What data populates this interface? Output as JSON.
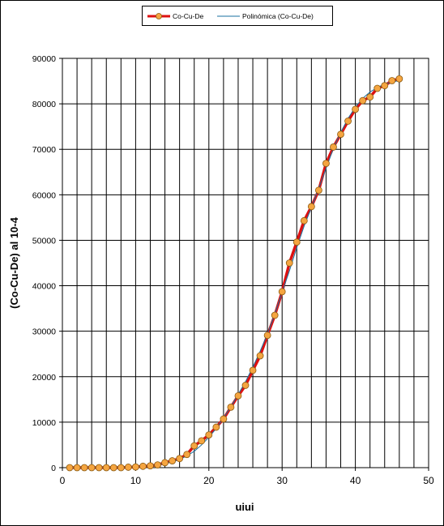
{
  "chart_data": {
    "type": "line",
    "xlabel": "uiui",
    "ylabel": "(Co-Cu-De) al 10-4",
    "xlim": [
      0,
      50
    ],
    "ylim": [
      0,
      90000
    ],
    "x_ticks": [
      0,
      10,
      20,
      30,
      40,
      50
    ],
    "y_ticks": [
      0,
      10000,
      20000,
      30000,
      40000,
      50000,
      60000,
      70000,
      80000,
      90000
    ],
    "x_grid_step": 2,
    "y_grid_step": 10000,
    "grid": true,
    "legend_position": "top-center",
    "series": [
      {
        "name": "Co-Cu-De",
        "line_color": "#dd1111",
        "marker_fill": "#f5a540",
        "marker_stroke": "#8a5a10",
        "x": [
          1,
          2,
          3,
          4,
          5,
          6,
          7,
          8,
          9,
          10,
          11,
          12,
          13,
          14,
          15,
          16,
          17,
          18,
          19,
          20,
          21,
          22,
          23,
          24,
          25,
          26,
          27,
          28,
          29,
          30,
          31,
          32,
          33,
          34,
          35,
          36,
          37,
          38,
          39,
          40,
          41,
          42,
          43,
          44,
          45,
          46
        ],
        "y": [
          0,
          0,
          0,
          0,
          0,
          0,
          0,
          0,
          100,
          150,
          300,
          400,
          600,
          1100,
          1500,
          2000,
          2900,
          4800,
          5900,
          7200,
          8900,
          10700,
          13300,
          15800,
          18100,
          21400,
          24600,
          29100,
          33500,
          38700,
          45000,
          49600,
          54300,
          57400,
          61000,
          66900,
          70500,
          73300,
          76200,
          78800,
          80700,
          81500,
          83400,
          84000,
          85100,
          85500
        ]
      },
      {
        "name": "Polinómica (Co-Cu-De)",
        "line_color": "#1a6fa0",
        "x": [
          1,
          2,
          3,
          4,
          5,
          6,
          7,
          8,
          9,
          10,
          11,
          12,
          13,
          14,
          15,
          16,
          17,
          18,
          19,
          20,
          21,
          22,
          23,
          24,
          25,
          26,
          27,
          28,
          29,
          30,
          31,
          32,
          33,
          34,
          35,
          36,
          37,
          38,
          39,
          40,
          41,
          42,
          43,
          44,
          45,
          46
        ],
        "y": [
          0,
          0,
          0,
          0,
          0,
          0,
          0,
          50,
          120,
          200,
          300,
          450,
          650,
          900,
          1300,
          1800,
          2600,
          3600,
          5000,
          6700,
          8600,
          10900,
          13400,
          16100,
          18900,
          22100,
          25600,
          29400,
          33800,
          38600,
          43300,
          48400,
          53100,
          57200,
          61400,
          65800,
          70200,
          73700,
          76800,
          79300,
          81200,
          82600,
          83600,
          84300,
          84800,
          85100
        ]
      }
    ]
  }
}
